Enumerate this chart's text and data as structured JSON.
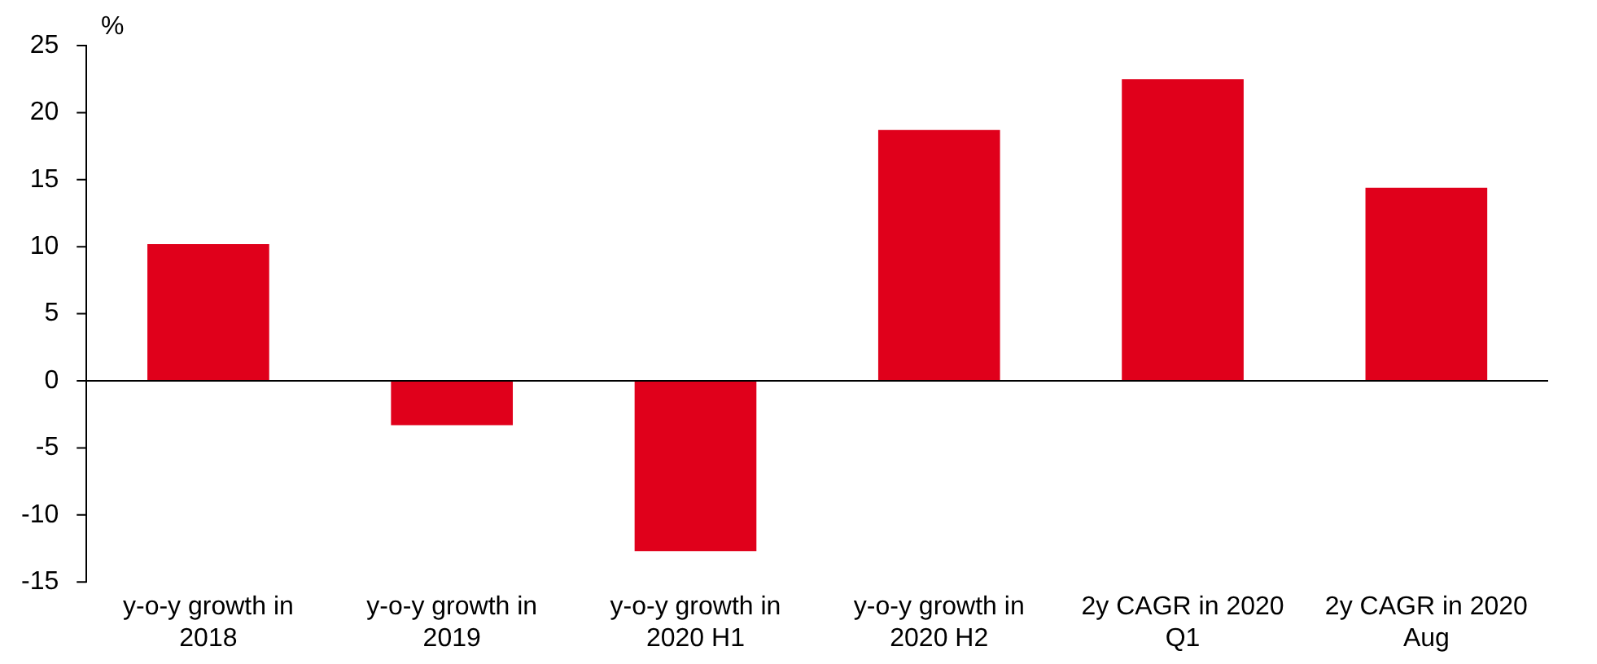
{
  "chart_data": {
    "type": "bar",
    "ylabel": "%",
    "categories": [
      "y-o-y growth in 2018",
      "y-o-y growth in 2019",
      "y-o-y growth in 2020 H1",
      "y-o-y growth in 2020 H2",
      "2y CAGR in 2020 Q1",
      "2y CAGR in 2020 Aug"
    ],
    "values": [
      10.2,
      -3.3,
      -12.7,
      18.7,
      22.5,
      14.4
    ],
    "color": "#e0001b",
    "ylim": [
      -15,
      25
    ],
    "yticks": [
      -15,
      -10,
      -5,
      0,
      5,
      10,
      15,
      20,
      25
    ],
    "grid": false,
    "legend": false,
    "ref_lines": [
      {
        "axis": "y",
        "value": 0,
        "color": "#000000"
      }
    ]
  }
}
